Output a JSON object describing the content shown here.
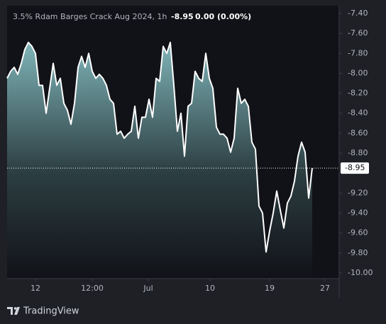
{
  "chart_data": {
    "type": "line",
    "title": "3.5% Rdam Barges Crack Aug 2024, 1h",
    "last_value": -8.95,
    "change": "0.00 (0.00%)",
    "brand": "TradingView",
    "color": "#ffffff",
    "values": [
      -8.05,
      -7.98,
      -7.94,
      -8.01,
      -7.9,
      -7.76,
      -7.69,
      -7.73,
      -7.8,
      -8.12,
      -8.12,
      -8.4,
      -8.15,
      -7.9,
      -8.12,
      -8.05,
      -8.3,
      -8.37,
      -8.51,
      -8.3,
      -7.94,
      -7.83,
      -7.94,
      -7.8,
      -7.98,
      -8.05,
      -8.01,
      -8.05,
      -8.12,
      -8.26,
      -8.3,
      -8.61,
      -8.58,
      -8.65,
      -8.61,
      -8.58,
      -8.33,
      -8.65,
      -8.44,
      -8.44,
      -8.26,
      -8.44,
      -8.05,
      -8.08,
      -7.73,
      -7.8,
      -7.69,
      -8.12,
      -8.58,
      -8.4,
      -8.83,
      -8.33,
      -8.3,
      -7.98,
      -8.05,
      -8.08,
      -7.8,
      -8.05,
      -8.15,
      -8.54,
      -8.61,
      -8.61,
      -8.65,
      -8.79,
      -8.65,
      -8.15,
      -8.3,
      -8.26,
      -8.33,
      -8.69,
      -8.76,
      -9.33,
      -9.4,
      -9.79,
      -9.58,
      -9.4,
      -9.18,
      -9.37,
      -9.55,
      -9.3,
      -9.23,
      -9.08,
      -8.83,
      -8.69,
      -8.79,
      -9.25,
      -8.95
    ],
    "xlim": [
      0,
      93.6
    ],
    "xticks": [
      {
        "value": 8,
        "label": "12"
      },
      {
        "value": 24,
        "label": "12:00"
      },
      {
        "value": 39.8,
        "label": "Jul"
      },
      {
        "value": 57.2,
        "label": "10"
      },
      {
        "value": 74,
        "label": "19"
      },
      {
        "value": 89.6,
        "label": "27"
      }
    ],
    "ylim": [
      -10.057,
      -7.322
    ],
    "yticks": [
      {
        "value": -7.4,
        "label": "-7.40"
      },
      {
        "value": -7.6,
        "label": "-7.60"
      },
      {
        "value": -7.8,
        "label": "-7.80"
      },
      {
        "value": -8,
        "label": "-8.00"
      },
      {
        "value": -8.2,
        "label": "-8.20"
      },
      {
        "value": -8.4,
        "label": "-8.40"
      },
      {
        "value": -8.6,
        "label": "-8.60"
      },
      {
        "value": -8.8,
        "label": "-8.80"
      },
      {
        "value": -9.2,
        "label": "-9.20"
      },
      {
        "value": -9.4,
        "label": "-9.40"
      },
      {
        "value": -9.6,
        "label": "-9.60"
      },
      {
        "value": -9.8,
        "label": "-9.80"
      },
      {
        "value": -10,
        "label": "-10.00"
      }
    ]
  }
}
